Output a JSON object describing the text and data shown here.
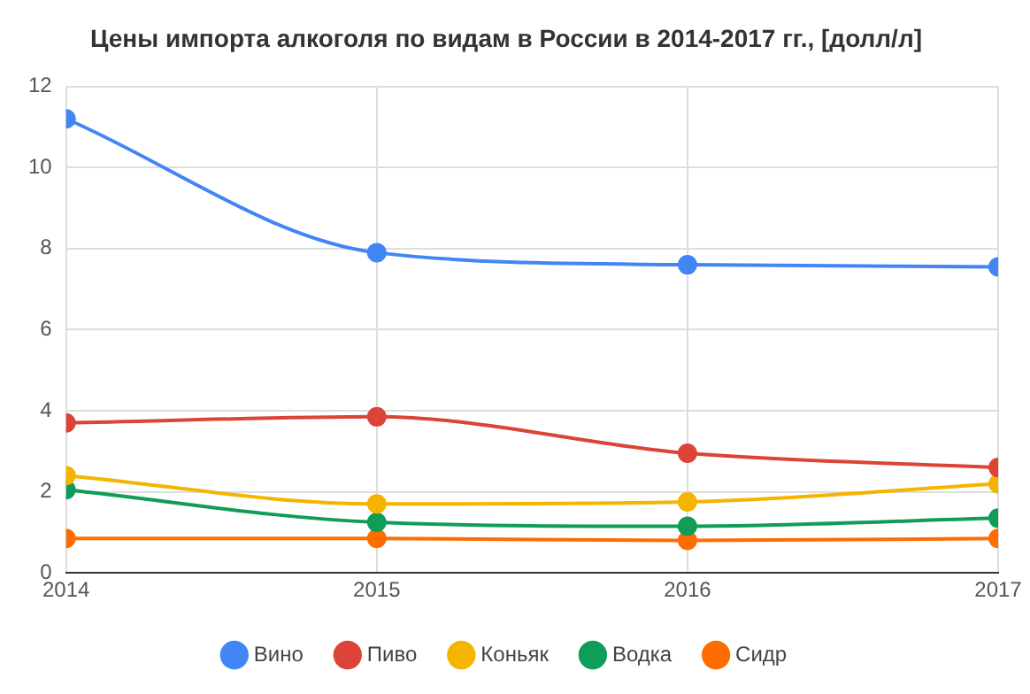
{
  "chart_data": {
    "type": "line",
    "title": "Цены импорта алкоголя по видам в России в 2014-2017 гг., [долл/л]",
    "x": [
      2014,
      2015,
      2016,
      2017
    ],
    "xlim": [
      2014,
      2017
    ],
    "xticks": [
      2014,
      2015,
      2016,
      2017
    ],
    "ylim": [
      0,
      12
    ],
    "yticks": [
      0,
      2,
      4,
      6,
      8,
      10,
      12
    ],
    "grid": true,
    "legend": "bottom",
    "marker": "circle",
    "line_style": "solid",
    "series": [
      {
        "name": "Вино",
        "color": "#4285f4",
        "values": [
          11.2,
          7.9,
          7.6,
          7.55
        ]
      },
      {
        "name": "Пиво",
        "color": "#db4437",
        "values": [
          3.7,
          3.85,
          2.95,
          2.6
        ]
      },
      {
        "name": "Коньяк",
        "color": "#f4b400",
        "values": [
          2.4,
          1.7,
          1.75,
          2.2
        ]
      },
      {
        "name": "Водка",
        "color": "#0f9d58",
        "values": [
          2.05,
          1.25,
          1.15,
          1.35
        ]
      },
      {
        "name": "Сидр",
        "color": "#ff6d00",
        "values": [
          0.85,
          0.85,
          0.8,
          0.85
        ]
      }
    ]
  }
}
